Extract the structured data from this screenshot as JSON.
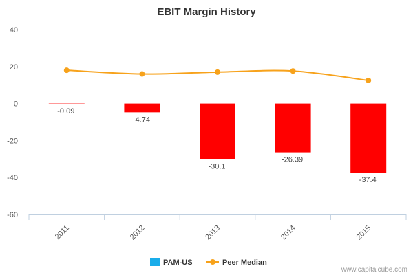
{
  "chart_data": {
    "type": "bar",
    "title": "EBIT Margin History",
    "categories": [
      "2011",
      "2012",
      "2013",
      "2014",
      "2015"
    ],
    "ylim": [
      -60,
      40
    ],
    "yticks": [
      40,
      20,
      0,
      -20,
      -40,
      -60
    ],
    "grid": false,
    "legend_position": "bottom-center",
    "series": [
      {
        "name": "PAM-US",
        "kind": "bar",
        "color": "#FF0000",
        "legend_color": "#1AADEA",
        "values": [
          -0.09,
          -4.74,
          -30.1,
          -26.39,
          -37.4
        ],
        "labels": [
          "-0.09",
          "-4.74",
          "-30.1",
          "-26.39",
          "-37.4"
        ]
      },
      {
        "name": "Peer Median",
        "kind": "line",
        "color": "#F7A21B",
        "values": [
          18,
          16,
          17,
          17.6,
          12.5
        ]
      }
    ]
  },
  "credit": "www.capitalcube.com"
}
